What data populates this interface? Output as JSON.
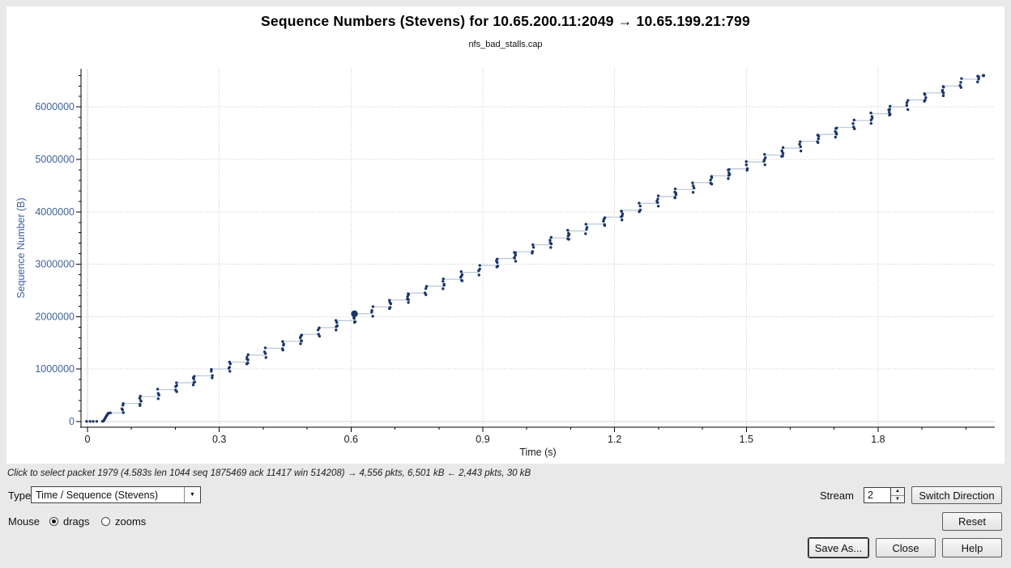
{
  "chart_data": {
    "type": "scatter",
    "title": "Sequence Numbers (Stevens) for 10.65.200.11:2049 → 10.65.199.21:799",
    "subtitle": "nfs_bad_stalls.cap",
    "xlabel": "Time (s)",
    "ylabel": "Sequence Number (B)",
    "xlim": [
      -0.015,
      2.066
    ],
    "ylim": [
      -100000,
      6730000
    ],
    "grid": true,
    "x_major_ticks": [
      0,
      0.3,
      0.6,
      0.9,
      1.2,
      1.5,
      1.8
    ],
    "x_tick_labels": [
      "0",
      "0.3",
      "0.6",
      "0.9",
      "1.2",
      "1.5",
      "1.8"
    ],
    "x_minor_step": 0.1,
    "x_minor_max": 2.0,
    "y_major_ticks": [
      0,
      1000000,
      2000000,
      3000000,
      4000000,
      5000000,
      6000000
    ],
    "y_tick_labels": [
      "0",
      "1000000",
      "2000000",
      "3000000",
      "4000000",
      "5000000",
      "6000000"
    ],
    "y_minor_step": 200000,
    "y_minor_max": 6600000,
    "zero_points": [
      [
        -0.002,
        3000
      ],
      [
        0.006,
        3000
      ],
      [
        0.013,
        3000
      ],
      [
        0.021,
        3000
      ],
      [
        0.034,
        3000
      ]
    ],
    "burst_points": [
      [
        0.036,
        8000
      ],
      [
        0.0375,
        26000
      ],
      [
        0.039,
        46000
      ],
      [
        0.0405,
        68000
      ],
      [
        0.042,
        90000
      ],
      [
        0.0435,
        112000
      ],
      [
        0.045,
        132000
      ],
      [
        0.0465,
        150000
      ],
      [
        0.048,
        160000
      ],
      [
        0.052,
        165000
      ]
    ],
    "clusters": [
      [
        0.08,
        170000,
        345000,
        5
      ],
      [
        0.1206,
        305000,
        476600,
        6
      ],
      [
        0.1612,
        436600,
        608200,
        4
      ],
      [
        0.2018,
        568200,
        739800,
        5
      ],
      [
        0.2424,
        699800,
        871400,
        6
      ],
      [
        0.283,
        831400,
        1003000,
        4
      ],
      [
        0.3236,
        963000,
        1134600,
        5
      ],
      [
        0.3642,
        1094600,
        1266200,
        6
      ],
      [
        0.4048,
        1226200,
        1397800,
        4
      ],
      [
        0.4454,
        1357800,
        1529400,
        5
      ],
      [
        0.486,
        1489400,
        1661000,
        6
      ],
      [
        0.5266,
        1621000,
        1792600,
        4
      ],
      [
        0.5672,
        1752600,
        1924200,
        5
      ],
      [
        0.6078,
        1884200,
        2055800,
        6
      ],
      [
        0.6484,
        2015800,
        2187400,
        4
      ],
      [
        0.689,
        2147400,
        2319000,
        5
      ],
      [
        0.7296,
        2279000,
        2450600,
        6
      ],
      [
        0.7702,
        2410600,
        2582200,
        4
      ],
      [
        0.8108,
        2542200,
        2713800,
        5
      ],
      [
        0.8514,
        2673800,
        2845400,
        6
      ],
      [
        0.892,
        2805400,
        2977000,
        4
      ],
      [
        0.9326,
        2937000,
        3108600,
        5
      ],
      [
        0.9732,
        3068600,
        3240200,
        6
      ],
      [
        1.0138,
        3200200,
        3371800,
        4
      ],
      [
        1.0544,
        3331800,
        3503400,
        5
      ],
      [
        1.095,
        3463400,
        3635000,
        6
      ],
      [
        1.1356,
        3595000,
        3766600,
        4
      ],
      [
        1.1762,
        3726600,
        3898200,
        5
      ],
      [
        1.2168,
        3858200,
        4029800,
        6
      ],
      [
        1.2574,
        3989800,
        4161400,
        4
      ],
      [
        1.298,
        4121400,
        4293000,
        5
      ],
      [
        1.3386,
        4253000,
        4424600,
        6
      ],
      [
        1.3792,
        4384600,
        4556200,
        4
      ],
      [
        1.4198,
        4516200,
        4687800,
        5
      ],
      [
        1.4604,
        4647800,
        4819400,
        6
      ],
      [
        1.501,
        4779400,
        4951000,
        4
      ],
      [
        1.5416,
        4911000,
        5082600,
        5
      ],
      [
        1.5822,
        5042600,
        5214200,
        6
      ],
      [
        1.6228,
        5174200,
        5345800,
        4
      ],
      [
        1.6634,
        5305800,
        5477400,
        5
      ],
      [
        1.704,
        5437400,
        5609000,
        6
      ],
      [
        1.7446,
        5569000,
        5740600,
        4
      ],
      [
        1.7852,
        5700600,
        5872200,
        5
      ],
      [
        1.8258,
        5832200,
        6003800,
        6
      ],
      [
        1.8664,
        5963800,
        6135400,
        4
      ],
      [
        1.907,
        6095400,
        6267000,
        5
      ],
      [
        1.9476,
        6227000,
        6398600,
        6
      ],
      [
        1.9882,
        6358600,
        6530200,
        4
      ],
      [
        2.028,
        6490200,
        6600000,
        4
      ]
    ],
    "selected_point": [
      0.6078,
      2055800
    ],
    "end_point": [
      2.04,
      6600000
    ],
    "colors": {
      "dots": "#1b3668",
      "connector": "#bdc9dc",
      "grid": "#c9c9c9",
      "zero_grid": "#d6d6d6",
      "axis": "#000000",
      "y_label": "#3d639c",
      "x_label": "#1a1a1a"
    }
  },
  "status": {
    "hint_text": "Click to select packet 1979 (4.583s len 1044 seq 1875469 ack 11417 win 514208) → 4,556 pkts, 6,501 kB ← 2,443 pkts, 30 kB"
  },
  "controls": {
    "type": {
      "label": "Type",
      "value": "Time / Sequence (Stevens)"
    },
    "mouse": {
      "label": "Mouse",
      "options": [
        {
          "label": "drags",
          "selected": true
        },
        {
          "label": "zooms",
          "selected": false
        }
      ]
    },
    "stream": {
      "label": "Stream",
      "value": "2"
    },
    "buttons": {
      "switch_direction": "Switch Direction",
      "reset": "Reset",
      "save_as": "Save As...",
      "close": "Close",
      "help": "Help"
    }
  },
  "icons": {
    "dropdown_arrow": "▼",
    "spin_up": "▲",
    "spin_down": "▼"
  }
}
